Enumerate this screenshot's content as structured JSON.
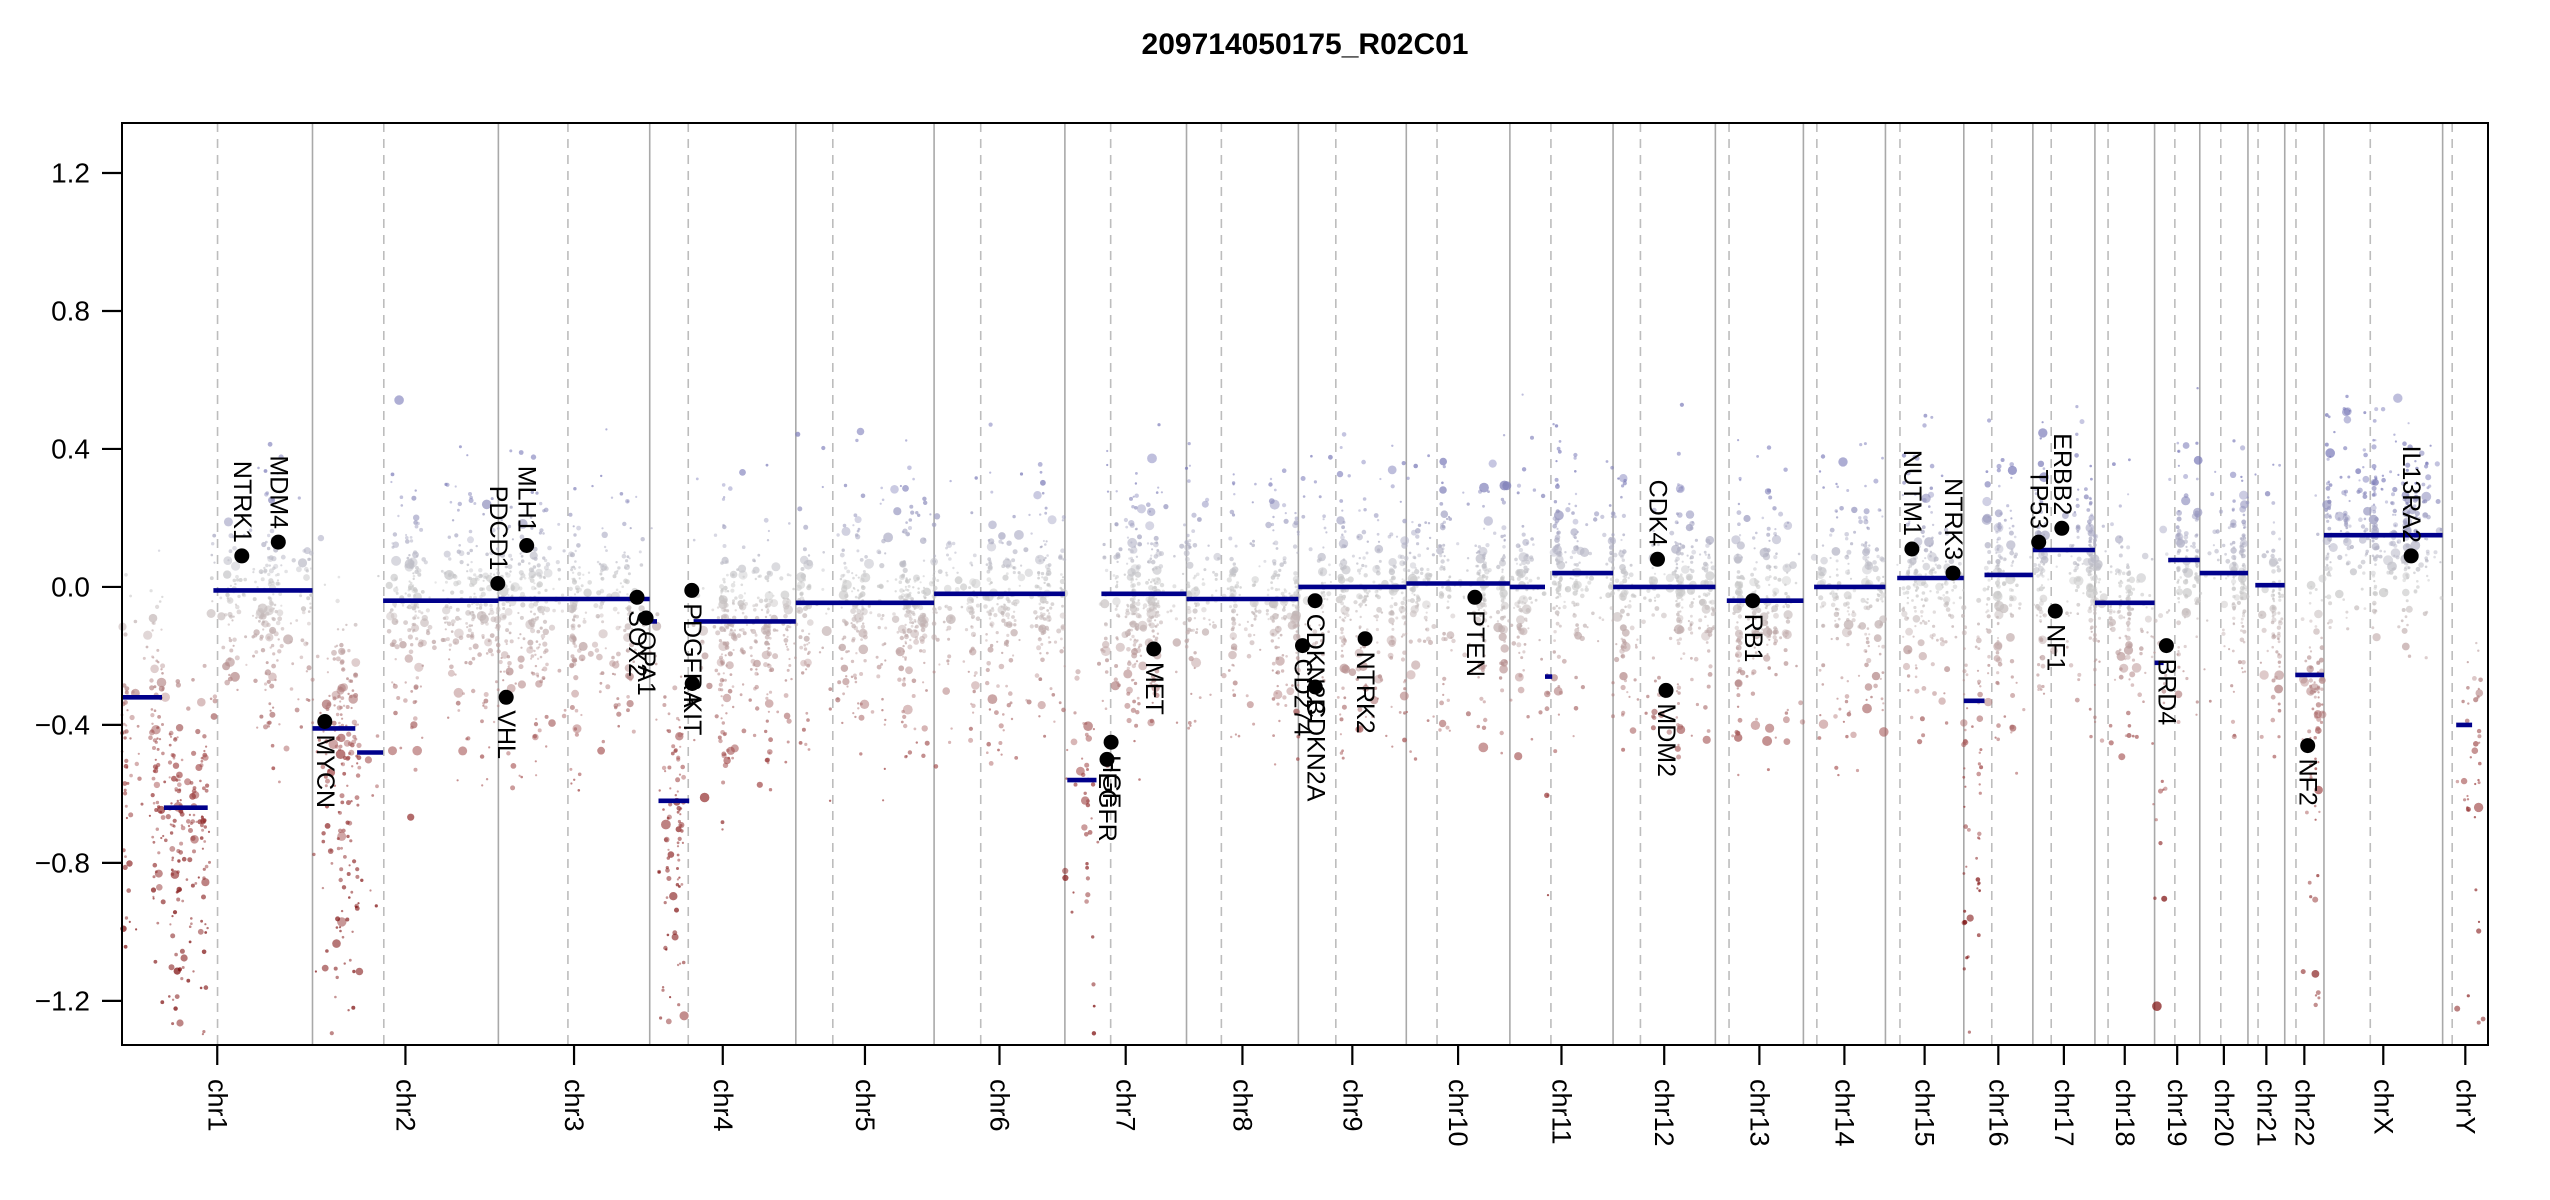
{
  "title": "209714050175_R02C01",
  "colors": {
    "background": "#ffffff",
    "segment": "#00008b",
    "axis": "#000000",
    "boundary": "#a9a9a9",
    "centromere": "#bdbdbd",
    "point_zero": "#c9c9c9",
    "point_gain": "#7d7dba",
    "point_loss_mid": "#a04545",
    "point_loss_deep": "#7d0d0d",
    "gene_dot": "#000000",
    "gene_label": "#000000"
  },
  "chart_data": {
    "type": "scatter",
    "title": "209714050175_R02C01",
    "xlabel": "",
    "ylabel": "",
    "ylim": [
      -1.328,
      1.345
    ],
    "yticks": [
      1.2,
      0.8,
      0.4,
      0.0,
      -0.4,
      -0.8,
      -1.2
    ],
    "ytick_labels": [
      "1.2",
      "0.8",
      "0.4",
      "0.0",
      "−0.4",
      "−0.8",
      "−1.2"
    ],
    "grid": false,
    "legend_position": "none",
    "description": "Genome-wide copy-number log2-ratio plot: per-probe scatter colored by value (blue gain, gray neutral, red loss), navy segmentation means per region, dashed lines at centromeres, solid lines at chromosome boundaries, black dots with rotated labels at detail genes (label above dot for gains, below for losses).",
    "chromosomes": [
      {
        "name": "chr1",
        "size_mb": 249.25,
        "cen_mb": 125.0,
        "segments": [
          [
            0.0,
            0.21,
            -0.32
          ],
          [
            0.22,
            0.45,
            -0.64
          ],
          [
            0.48,
            1.0,
            -0.01
          ]
        ]
      },
      {
        "name": "chr2",
        "size_mb": 243.2,
        "cen_mb": 93.3,
        "segments": [
          [
            0.0,
            0.23,
            -0.41
          ],
          [
            0.24,
            0.38,
            -0.48
          ],
          [
            0.38,
            1.0,
            -0.04
          ]
        ]
      },
      {
        "name": "chr3",
        "size_mb": 198.02,
        "cen_mb": 91.0,
        "segments": [
          [
            0.0,
            1.0,
            -0.035
          ]
        ]
      },
      {
        "name": "chr4",
        "size_mb": 191.15,
        "cen_mb": 50.4,
        "segments": [
          [
            0.0,
            0.05,
            -0.1
          ],
          [
            0.06,
            0.27,
            -0.62
          ],
          [
            0.3,
            1.0,
            -0.1
          ]
        ]
      },
      {
        "name": "chr5",
        "size_mb": 180.92,
        "cen_mb": 48.4,
        "segments": [
          [
            0.0,
            1.0,
            -0.046
          ]
        ]
      },
      {
        "name": "chr6",
        "size_mb": 171.12,
        "cen_mb": 61.0,
        "segments": [
          [
            0.0,
            1.0,
            -0.02
          ]
        ]
      },
      {
        "name": "chr7",
        "size_mb": 159.14,
        "cen_mb": 59.9,
        "segments": [
          [
            0.02,
            0.26,
            -0.56
          ],
          [
            0.3,
            1.0,
            -0.02
          ]
        ]
      },
      {
        "name": "chr8",
        "size_mb": 146.36,
        "cen_mb": 45.6,
        "segments": [
          [
            0.0,
            1.0,
            -0.035
          ]
        ]
      },
      {
        "name": "chr9",
        "size_mb": 141.21,
        "cen_mb": 49.0,
        "segments": [
          [
            0.0,
            1.0,
            0.0
          ]
        ]
      },
      {
        "name": "chr10",
        "size_mb": 135.53,
        "cen_mb": 40.2,
        "segments": [
          [
            0.0,
            1.0,
            0.01
          ]
        ]
      },
      {
        "name": "chr11",
        "size_mb": 135.01,
        "cen_mb": 53.7,
        "segments": [
          [
            0.0,
            0.34,
            0.0
          ],
          [
            0.34,
            0.41,
            -0.26
          ],
          [
            0.41,
            1.0,
            0.04
          ]
        ]
      },
      {
        "name": "chr12",
        "size_mb": 133.85,
        "cen_mb": 35.8,
        "segments": [
          [
            0.0,
            1.0,
            0.0
          ]
        ]
      },
      {
        "name": "chr13",
        "size_mb": 115.17,
        "cen_mb": 17.9,
        "acro": 0.13,
        "segments": [
          [
            0.13,
            1.0,
            -0.04
          ]
        ]
      },
      {
        "name": "chr14",
        "size_mb": 107.35,
        "cen_mb": 17.6,
        "acro": 0.13,
        "segments": [
          [
            0.13,
            1.0,
            0.0
          ]
        ]
      },
      {
        "name": "chr15",
        "size_mb": 102.53,
        "cen_mb": 19.0,
        "acro": 0.15,
        "segments": [
          [
            0.15,
            1.0,
            0.026
          ]
        ]
      },
      {
        "name": "chr16",
        "size_mb": 90.35,
        "cen_mb": 36.6,
        "segments": [
          [
            0.0,
            0.3,
            -0.33
          ],
          [
            0.3,
            1.0,
            0.035
          ]
        ]
      },
      {
        "name": "chr17",
        "size_mb": 81.2,
        "cen_mb": 24.0,
        "segments": [
          [
            0.0,
            1.0,
            0.107
          ]
        ]
      },
      {
        "name": "chr18",
        "size_mb": 78.08,
        "cen_mb": 17.2,
        "segments": [
          [
            0.0,
            1.0,
            -0.046
          ]
        ]
      },
      {
        "name": "chr19",
        "size_mb": 59.13,
        "cen_mb": 26.5,
        "segments": [
          [
            0.0,
            0.2,
            -0.22
          ],
          [
            0.3,
            1.0,
            0.078
          ]
        ]
      },
      {
        "name": "chr20",
        "size_mb": 63.03,
        "cen_mb": 27.5,
        "segments": [
          [
            0.0,
            1.0,
            0.04
          ]
        ]
      },
      {
        "name": "chr21",
        "size_mb": 48.13,
        "cen_mb": 13.2,
        "acro": 0.2,
        "segments": [
          [
            0.2,
            1.0,
            0.005
          ]
        ]
      },
      {
        "name": "chr22",
        "size_mb": 51.3,
        "cen_mb": 14.7,
        "acro": 0.27,
        "segments": [
          [
            0.27,
            1.0,
            -0.255
          ]
        ]
      },
      {
        "name": "chrX",
        "size_mb": 155.27,
        "cen_mb": 60.6,
        "segments": [
          [
            0.0,
            1.0,
            0.15
          ]
        ],
        "params": {
          "sd": 0.1,
          "up_p": 0.35,
          "up_mag": 0.32,
          "down_p": 0.15,
          "down_mag": 0.35
        }
      },
      {
        "name": "chrY",
        "size_mb": 59.37,
        "cen_mb": 12.5,
        "acro": 0.15,
        "n": 42,
        "segments": [
          [
            0.3,
            0.65,
            -0.4
          ]
        ],
        "params": {
          "sd": 0.2,
          "up_p": 0.05,
          "up_mag": 0.2,
          "down_p": 0.5,
          "down_mag": 0.9
        }
      }
    ],
    "genes": [
      {
        "name": "NTRK1",
        "chr": "chr1",
        "mb": 156.8,
        "value": 0.09
      },
      {
        "name": "MDM4",
        "chr": "chr1",
        "mb": 204.5,
        "value": 0.13
      },
      {
        "name": "MYCN",
        "chr": "chr2",
        "mb": 16.1,
        "value": -0.39
      },
      {
        "name": "PDCD1",
        "chr": "chr2",
        "mb": 242.5,
        "value": 0.01
      },
      {
        "name": "VHL",
        "chr": "chr3",
        "mb": 10.2,
        "value": -0.32
      },
      {
        "name": "MLH1",
        "chr": "chr3",
        "mb": 37.0,
        "value": 0.12
      },
      {
        "name": "SOX2",
        "chr": "chr3",
        "mb": 181.4,
        "value": -0.03
      },
      {
        "name": "OPA1",
        "chr": "chr3",
        "mb": 193.3,
        "value": -0.09
      },
      {
        "name": "PDGFRA",
        "chr": "chr4",
        "mb": 55.1,
        "value": -0.01
      },
      {
        "name": "KIT",
        "chr": "chr4",
        "mb": 55.6,
        "value": -0.28
      },
      {
        "name": "EGFR",
        "chr": "chr7",
        "mb": 55.1,
        "value": -0.5
      },
      {
        "name": "HGF",
        "chr": "chr7",
        "mb": 60.5,
        "value": -0.45
      },
      {
        "name": "MET",
        "chr": "chr7",
        "mb": 116.3,
        "value": -0.18
      },
      {
        "name": "CD274",
        "chr": "chr9",
        "mb": 5.4,
        "value": -0.17
      },
      {
        "name": "CDKN2B",
        "chr": "chr9",
        "mb": 21.9,
        "value": -0.04
      },
      {
        "name": "CDKN2A",
        "chr": "chr9",
        "mb": 22.1,
        "value": -0.29
      },
      {
        "name": "NTRK2",
        "chr": "chr9",
        "mb": 87.3,
        "value": -0.15
      },
      {
        "name": "PTEN",
        "chr": "chr10",
        "mb": 89.7,
        "value": -0.03
      },
      {
        "name": "CDK4",
        "chr": "chr12",
        "mb": 58.1,
        "value": 0.08
      },
      {
        "name": "MDM2",
        "chr": "chr12",
        "mb": 69.2,
        "value": -0.3
      },
      {
        "name": "RB1",
        "chr": "chr13",
        "mb": 48.9,
        "value": -0.04
      },
      {
        "name": "NUTM1",
        "chr": "chr15",
        "mb": 34.6,
        "value": 0.11
      },
      {
        "name": "NTRK3",
        "chr": "chr15",
        "mb": 88.4,
        "value": 0.04
      },
      {
        "name": "TP53",
        "chr": "chr17",
        "mb": 7.6,
        "value": 0.13
      },
      {
        "name": "NF1",
        "chr": "chr17",
        "mb": 29.4,
        "value": -0.07
      },
      {
        "name": "ERBB2",
        "chr": "chr17",
        "mb": 37.9,
        "value": 0.17
      },
      {
        "name": "BRD4",
        "chr": "chr19",
        "mb": 15.4,
        "value": -0.17
      },
      {
        "name": "NF2",
        "chr": "chr22",
        "mb": 30.0,
        "value": -0.46
      },
      {
        "name": "IL13RA2",
        "chr": "chrX",
        "mb": 114.2,
        "value": 0.09
      }
    ]
  }
}
